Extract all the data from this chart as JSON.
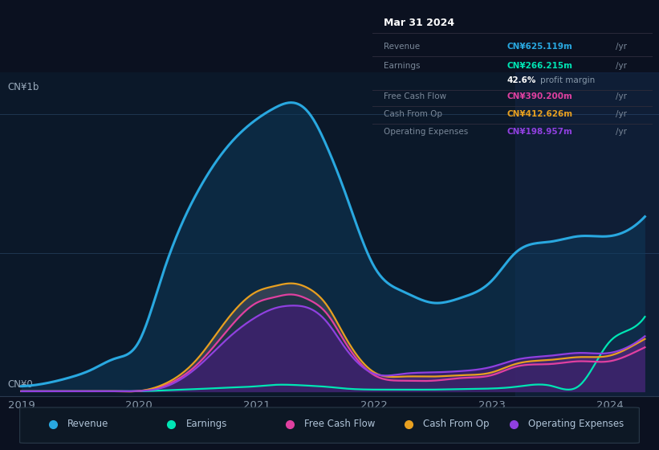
{
  "title": "Mar 31 2024",
  "bg_color": "#0b1120",
  "chart_bg": "#0b1829",
  "ylabel_top": "CN¥1b",
  "ylabel_bottom": "CN¥0",
  "x_ticks": [
    "2019",
    "2020",
    "2021",
    "2022",
    "2023",
    "2024"
  ],
  "legend": [
    {
      "label": "Revenue",
      "color": "#29a8e0"
    },
    {
      "label": "Earnings",
      "color": "#00e5b4"
    },
    {
      "label": "Free Cash Flow",
      "color": "#e040a0"
    },
    {
      "label": "Cash From Op",
      "color": "#e8a020"
    },
    {
      "label": "Operating Expenses",
      "color": "#9040e0"
    }
  ],
  "series": {
    "x": [
      2019.0,
      2019.2,
      2019.4,
      2019.6,
      2019.8,
      2020.0,
      2020.2,
      2020.5,
      2020.75,
      2021.0,
      2021.15,
      2021.3,
      2021.45,
      2021.6,
      2021.75,
      2022.0,
      2022.25,
      2022.5,
      2022.75,
      2023.0,
      2023.2,
      2023.5,
      2023.75,
      2024.0,
      2024.15,
      2024.3
    ],
    "Revenue": [
      0.02,
      0.03,
      0.05,
      0.08,
      0.12,
      0.18,
      0.42,
      0.72,
      0.88,
      0.98,
      1.02,
      1.04,
      1.0,
      0.88,
      0.72,
      0.45,
      0.36,
      0.32,
      0.34,
      0.4,
      0.5,
      0.54,
      0.56,
      0.56,
      0.58,
      0.63
    ],
    "Earnings": [
      0.002,
      0.002,
      0.002,
      0.002,
      0.002,
      0.002,
      0.005,
      0.01,
      0.015,
      0.02,
      0.025,
      0.025,
      0.022,
      0.018,
      0.012,
      0.008,
      0.008,
      0.008,
      0.01,
      0.012,
      0.018,
      0.022,
      0.025,
      0.18,
      0.22,
      0.27
    ],
    "Free Cash Flow": [
      0.002,
      0.002,
      0.002,
      0.002,
      0.002,
      0.003,
      0.02,
      0.1,
      0.22,
      0.32,
      0.34,
      0.35,
      0.33,
      0.28,
      0.18,
      0.06,
      0.04,
      0.04,
      0.05,
      0.06,
      0.09,
      0.1,
      0.11,
      0.11,
      0.13,
      0.16
    ],
    "Cash From Op": [
      0.002,
      0.002,
      0.002,
      0.002,
      0.002,
      0.003,
      0.025,
      0.12,
      0.26,
      0.36,
      0.38,
      0.39,
      0.37,
      0.31,
      0.2,
      0.07,
      0.055,
      0.055,
      0.06,
      0.07,
      0.1,
      0.115,
      0.125,
      0.13,
      0.155,
      0.19
    ],
    "Operating Expenses": [
      0.002,
      0.002,
      0.002,
      0.002,
      0.002,
      0.003,
      0.015,
      0.09,
      0.19,
      0.27,
      0.3,
      0.31,
      0.3,
      0.25,
      0.16,
      0.065,
      0.065,
      0.07,
      0.075,
      0.09,
      0.115,
      0.13,
      0.14,
      0.14,
      0.16,
      0.2
    ]
  }
}
